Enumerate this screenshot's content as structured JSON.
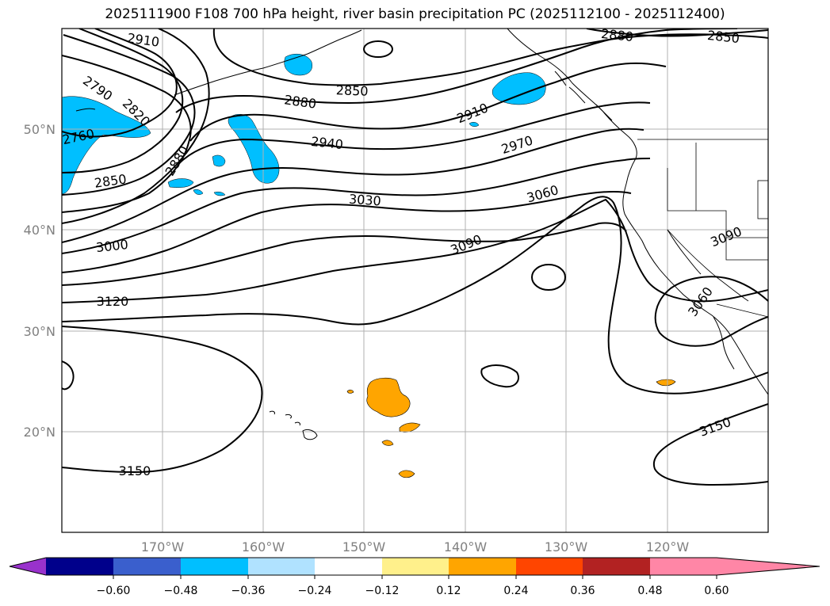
{
  "title": "2025111900 F108 700 hPa height, river basin precipitation PC (2025112100 - 2025112400)",
  "map": {
    "lat_labels": [
      "50°N",
      "40°N",
      "30°N",
      "20°N"
    ],
    "lon_labels": [
      "170°W",
      "160°W",
      "150°W",
      "140°W",
      "130°W",
      "120°W"
    ],
    "contour_labels": [
      "2910",
      "2790",
      "2820",
      "2760",
      "2850",
      "2880",
      "2850",
      "2880",
      "2940",
      "2910",
      "2970",
      "3030",
      "3060",
      "3000",
      "3090",
      "3120",
      "3090",
      "3060",
      "3150",
      "3150",
      "2880",
      "2850"
    ],
    "contour_color": "#000000",
    "grid_color": "#b0b0b0"
  },
  "colorbar": {
    "ticks": [
      "−0.60",
      "−0.48",
      "−0.36",
      "−0.24",
      "−0.12",
      "0.12",
      "0.24",
      "0.36",
      "0.48",
      "0.60"
    ],
    "colors": [
      "#9932cc",
      "#00008b",
      "#3a5fcd",
      "#00bfff",
      "#b0e2ff",
      "#ffffff",
      "#fff08b",
      "#ffa500",
      "#ff4500",
      "#b22222",
      "#ff86a6"
    ]
  }
}
